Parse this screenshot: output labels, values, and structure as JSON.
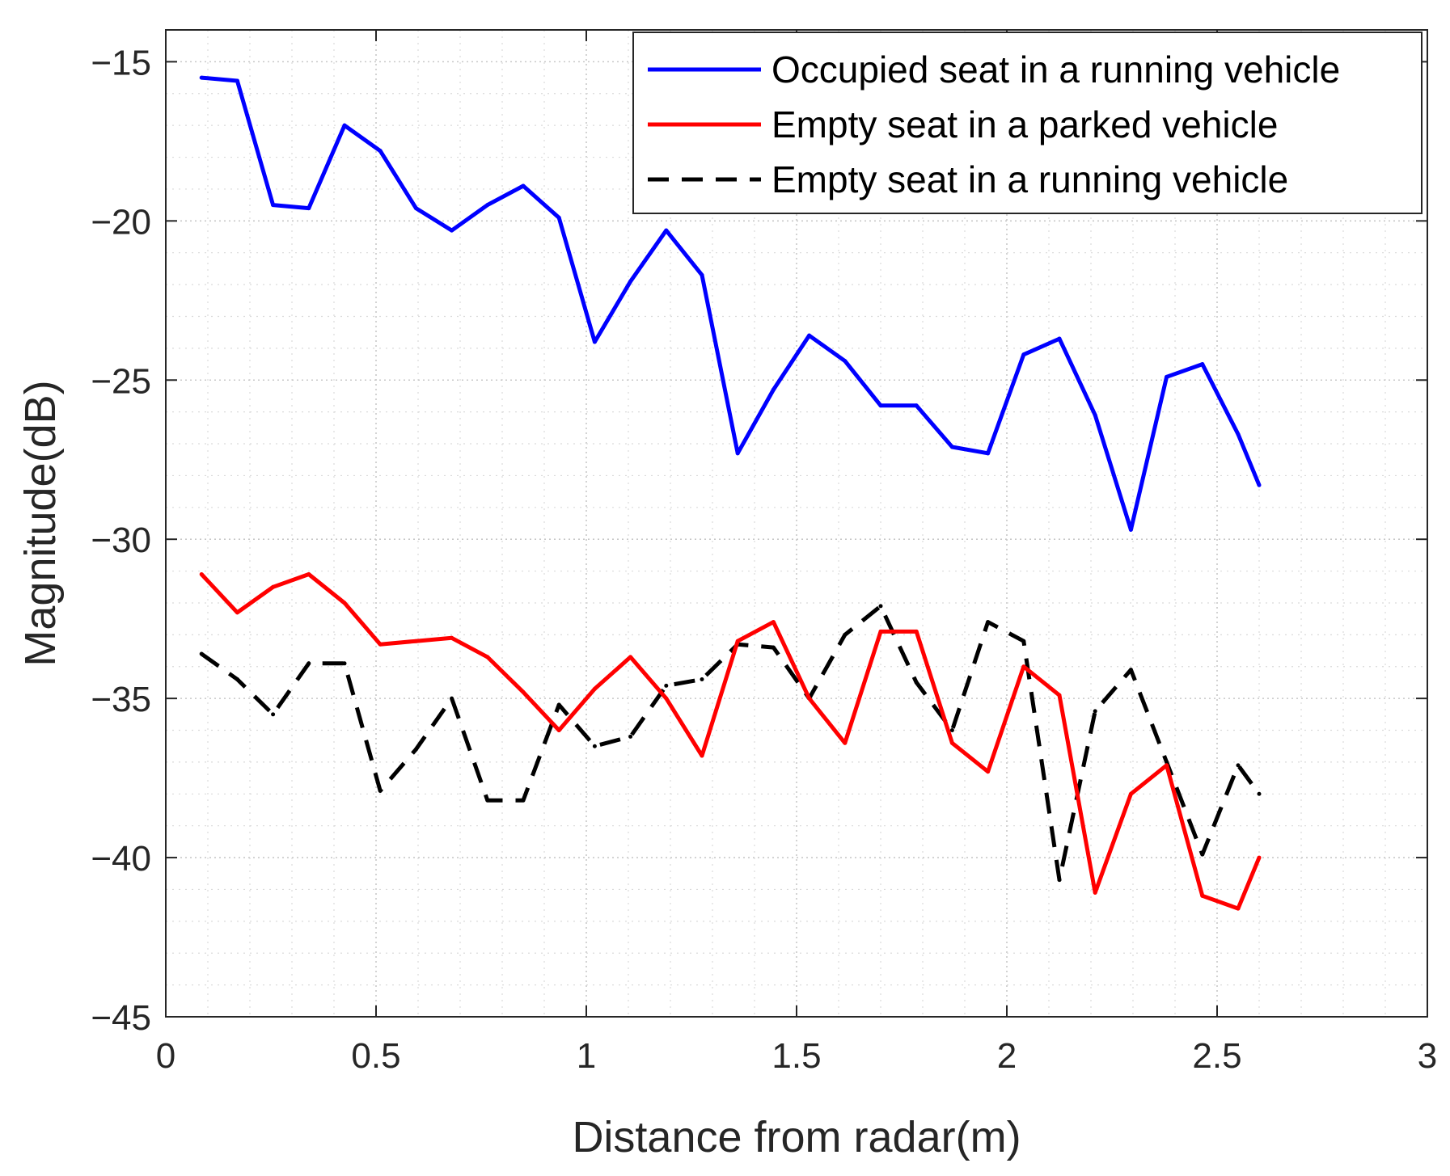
{
  "chart_data": {
    "type": "line",
    "title": "",
    "xlabel": "Distance from radar(m)",
    "ylabel": "Magnitude(dB)",
    "xlim": [
      0,
      3
    ],
    "ylim": [
      -45,
      -14
    ],
    "xticks": [
      0,
      0.5,
      1,
      1.5,
      2,
      2.5,
      3
    ],
    "xtick_labels": [
      "0",
      "0.5",
      "1",
      "1.5",
      "2",
      "2.5",
      "3"
    ],
    "yticks": [
      -45,
      -40,
      -35,
      -30,
      -25,
      -20,
      -15
    ],
    "ytick_labels": [
      "−45",
      "−40",
      "−35",
      "−30",
      "−25",
      "−20",
      "−15"
    ],
    "grid": "on (major and minor, dotted)",
    "legend_position": "top-right",
    "x": [
      0.085,
      0.17,
      0.255,
      0.34,
      0.425,
      0.51,
      0.595,
      0.68,
      0.765,
      0.85,
      0.935,
      1.02,
      1.105,
      1.19,
      1.275,
      1.36,
      1.445,
      1.53,
      1.615,
      1.7,
      1.785,
      1.87,
      1.955,
      2.04,
      2.125,
      2.21,
      2.295,
      2.38,
      2.465,
      2.55,
      2.6
    ],
    "series": [
      {
        "name": "Occupied seat in a running vehicle",
        "color": "#0000ff",
        "style": "solid",
        "values": [
          -15.5,
          -15.6,
          -19.5,
          -19.6,
          -17.0,
          -17.8,
          -19.6,
          -20.3,
          -19.5,
          -18.9,
          -19.9,
          -23.8,
          -21.9,
          -20.3,
          -21.7,
          -27.3,
          -25.3,
          -23.6,
          -24.4,
          -25.8,
          -25.8,
          -27.1,
          -27.3,
          -24.2,
          -23.7,
          -26.1,
          -29.7,
          -24.9,
          -24.5,
          -26.7,
          -28.3
        ]
      },
      {
        "name": "Empty seat in a parked vehicle",
        "color": "#ff0000",
        "style": "solid",
        "values": [
          -31.1,
          -32.3,
          -31.5,
          -31.1,
          -32.0,
          -33.3,
          -33.2,
          -33.1,
          -33.7,
          -34.8,
          -36.0,
          -34.7,
          -33.7,
          -35.0,
          -36.8,
          -33.2,
          -32.6,
          -35.0,
          -36.4,
          -32.9,
          -32.9,
          -36.4,
          -37.3,
          -34.0,
          -34.9,
          -41.1,
          -38.0,
          -37.1,
          -41.2,
          -41.6,
          -40.0
        ]
      },
      {
        "name": "Empty seat in a running vehicle",
        "color": "#000000",
        "style": "dashed",
        "values": [
          -33.6,
          -34.4,
          -35.5,
          -33.9,
          -33.9,
          -37.9,
          -36.6,
          -35.0,
          -38.2,
          -38.2,
          -35.2,
          -36.5,
          -36.2,
          -34.6,
          -34.4,
          -33.3,
          -33.4,
          -35.0,
          -33.0,
          -32.1,
          -34.5,
          -36.0,
          -32.6,
          -33.2,
          -40.7,
          -35.4,
          -34.1,
          -37.0,
          -39.9,
          -37.1,
          -38.0
        ]
      }
    ]
  }
}
